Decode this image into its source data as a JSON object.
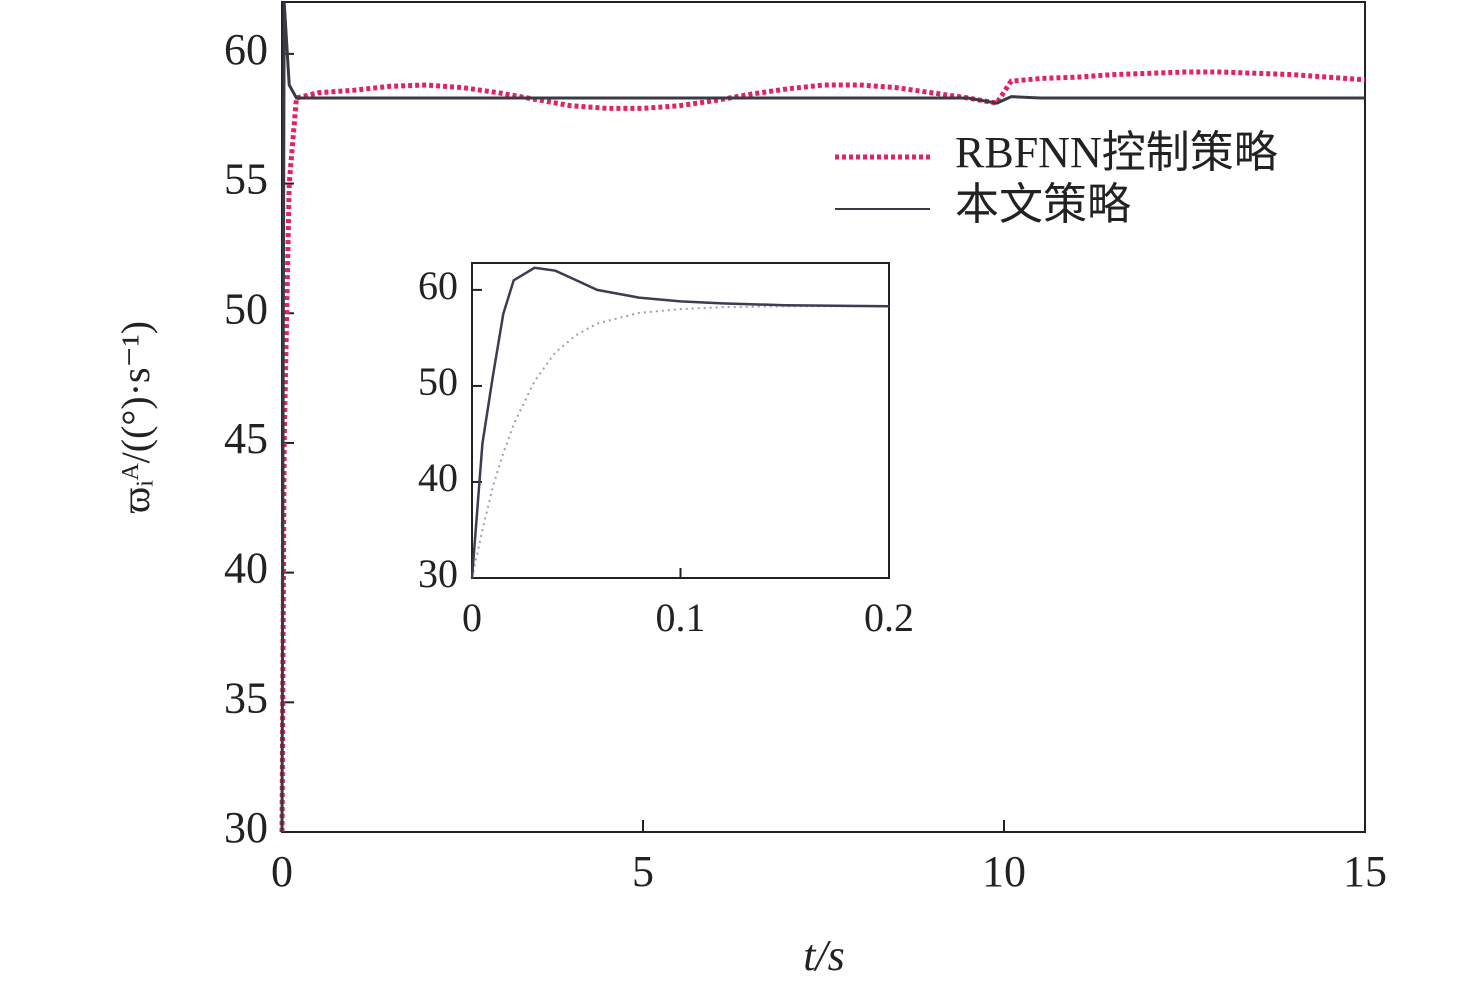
{
  "chart_data": [
    {
      "type": "line",
      "xlabel": "t/s",
      "ylabel": "ϖᵢᴬ/((°)·s⁻¹)",
      "x": [
        0,
        0.03,
        0.1,
        0.2,
        0.5,
        1,
        1.5,
        2,
        2.5,
        3,
        3.5,
        4,
        4.5,
        5,
        5.5,
        6,
        6.5,
        7,
        7.5,
        8,
        8.5,
        9,
        9.5,
        9.9,
        10.1,
        10.5,
        11,
        11.5,
        12,
        12.5,
        13,
        13.5,
        14,
        14.5,
        15
      ],
      "series": [
        {
          "name": "RBFNN控制策略",
          "color": "#e0245e",
          "linestyle": "dotted",
          "values": [
            30,
            45,
            55,
            58.3,
            58.5,
            58.6,
            58.75,
            58.8,
            58.7,
            58.5,
            58.25,
            58.0,
            57.9,
            57.9,
            58.0,
            58.2,
            58.45,
            58.65,
            58.8,
            58.8,
            58.7,
            58.5,
            58.3,
            58.1,
            58.95,
            59.05,
            59.1,
            59.2,
            59.25,
            59.3,
            59.3,
            59.25,
            59.2,
            59.1,
            59.0
          ]
        },
        {
          "name": "本文策略",
          "color": "#3a3a44",
          "linestyle": "solid",
          "values": [
            30,
            62,
            58.8,
            58.3,
            58.3,
            58.3,
            58.3,
            58.3,
            58.3,
            58.3,
            58.3,
            58.3,
            58.3,
            58.3,
            58.3,
            58.3,
            58.3,
            58.3,
            58.3,
            58.3,
            58.3,
            58.3,
            58.3,
            58.1,
            58.35,
            58.3,
            58.3,
            58.3,
            58.3,
            58.3,
            58.3,
            58.3,
            58.3,
            58.3,
            58.3
          ]
        }
      ],
      "xlim": [
        0,
        15
      ],
      "xticks": [
        0,
        5,
        10,
        15
      ],
      "ylim": [
        30,
        62
      ],
      "yticks": [
        30,
        35,
        40,
        45,
        50,
        55,
        60
      ],
      "grid": false,
      "legend": "upper right"
    },
    {
      "type": "line",
      "x": [
        0,
        0.005,
        0.01,
        0.015,
        0.02,
        0.03,
        0.04,
        0.05,
        0.06,
        0.08,
        0.1,
        0.12,
        0.15,
        0.2
      ],
      "series": [
        {
          "color": "#9aa0b4",
          "linestyle": "dotted",
          "values": [
            30,
            35,
            39.5,
            43,
            46,
            50.5,
            53.5,
            55.3,
            56.5,
            57.6,
            58.0,
            58.2,
            58.3,
            58.3
          ]
        },
        {
          "color": "#3c3c52",
          "linestyle": "solid",
          "values": [
            30,
            44,
            51,
            57.5,
            61,
            62.3,
            62,
            61,
            60,
            59.2,
            58.8,
            58.6,
            58.4,
            58.3
          ]
        }
      ],
      "xlim": [
        0,
        0.2
      ],
      "xticks": [
        0,
        0.1,
        0.2
      ],
      "ylim": [
        30,
        62.8
      ],
      "yticks": [
        30,
        40,
        50,
        60
      ],
      "grid": false
    }
  ]
}
